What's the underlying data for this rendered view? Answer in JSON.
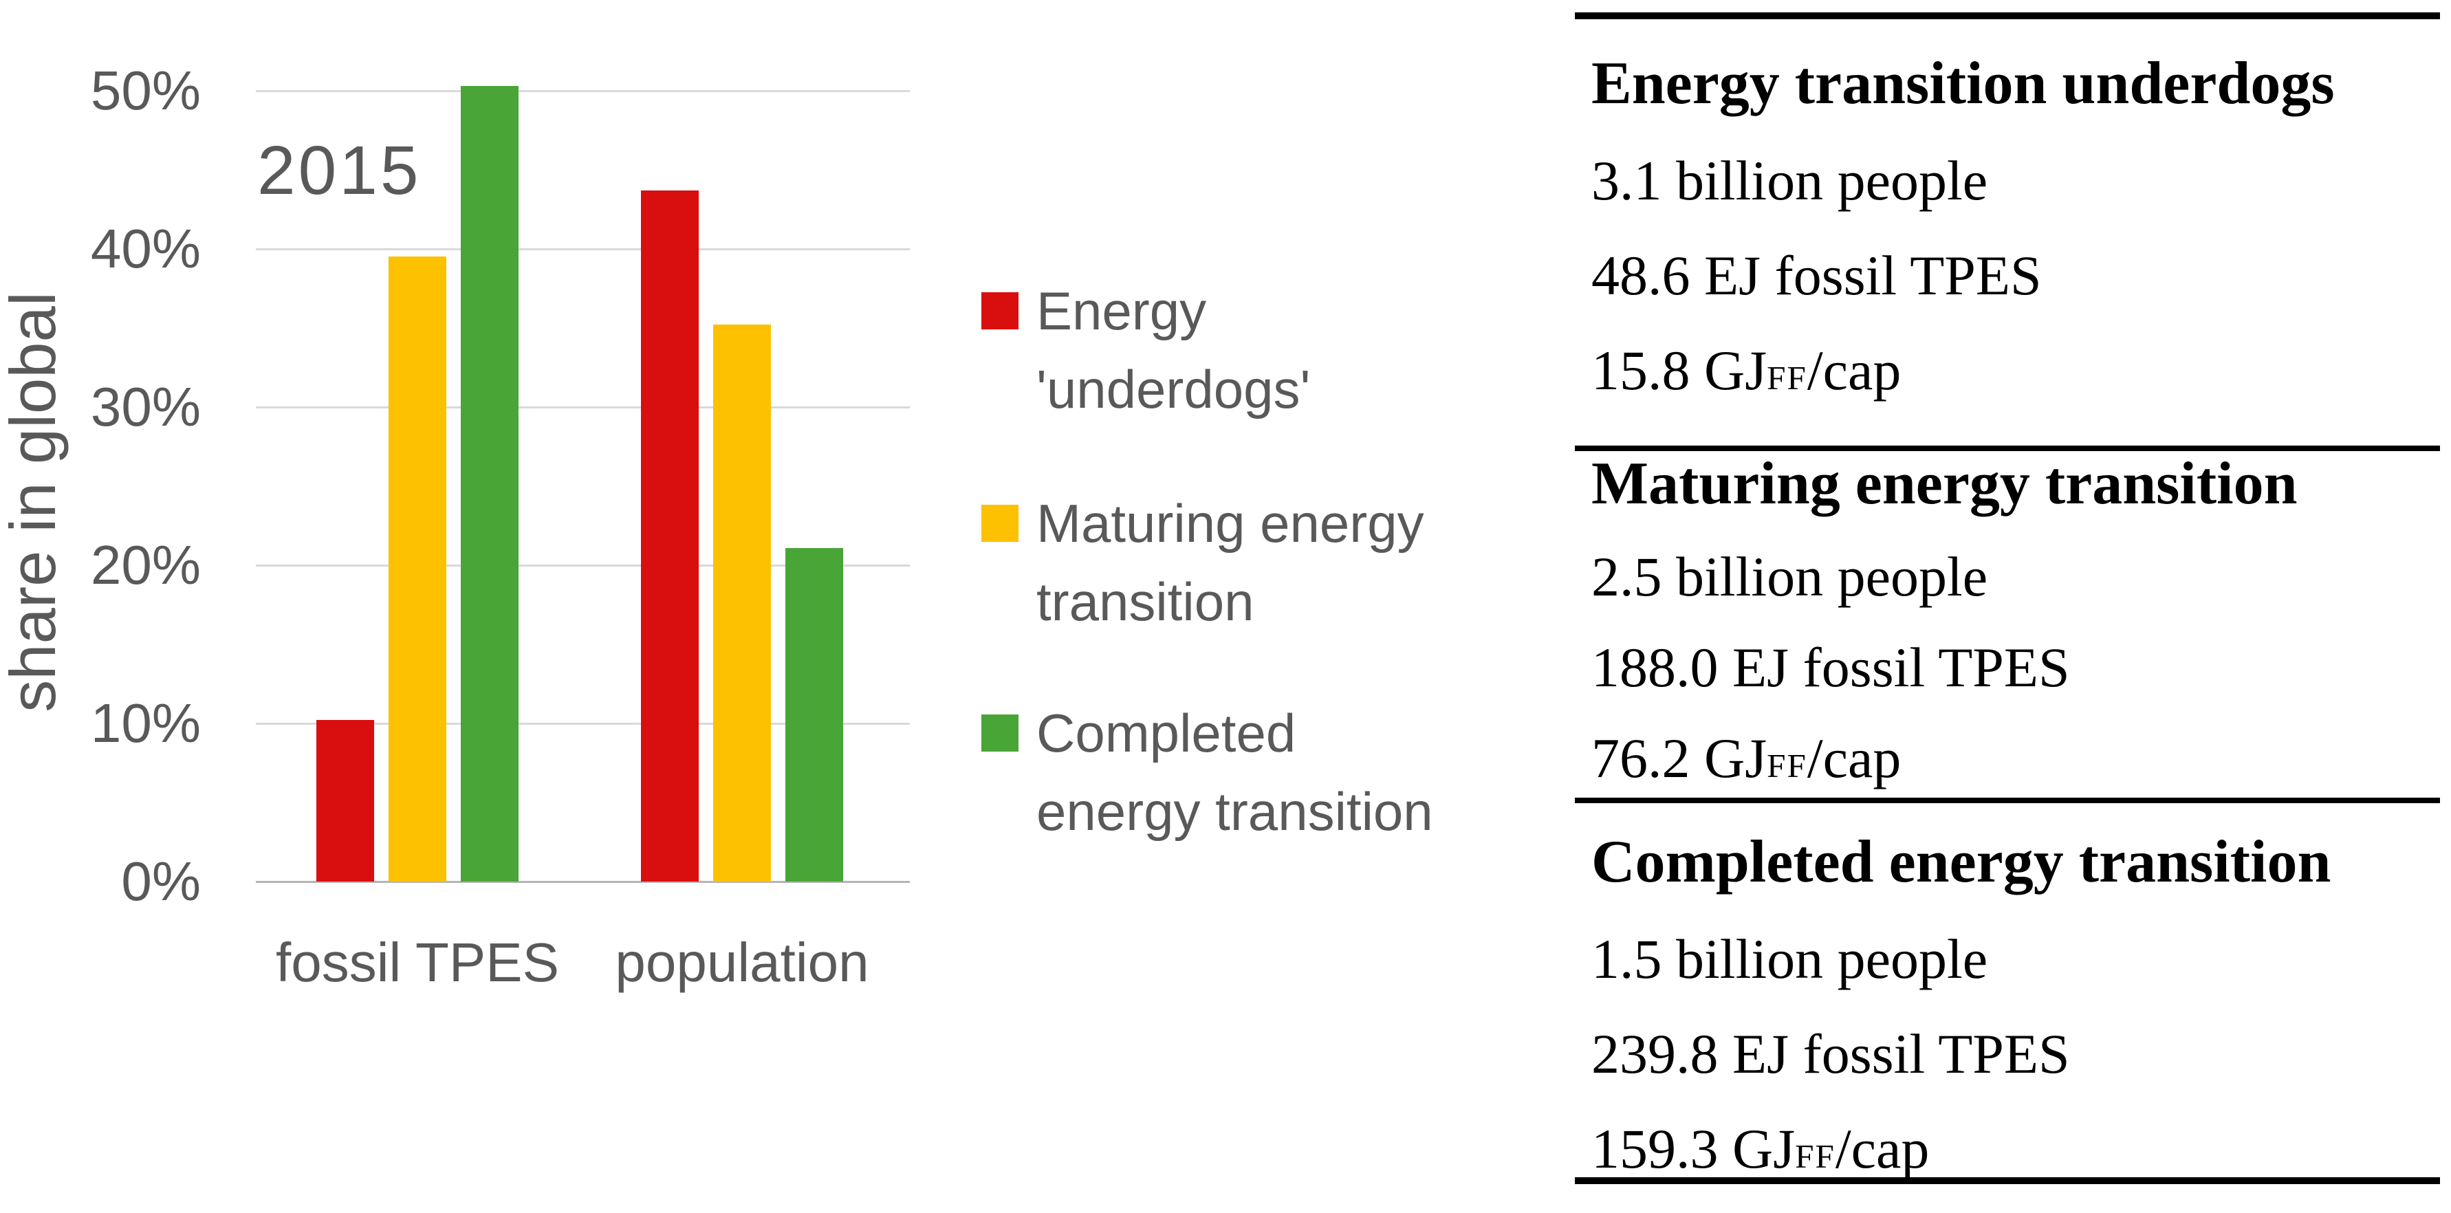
{
  "chart_data": {
    "type": "bar",
    "title": "2015",
    "ylabel": "share in global",
    "xlabel": "",
    "categories": [
      "fossil TPES",
      "population"
    ],
    "series": [
      {
        "name": "Energy 'underdogs'",
        "color": "#d90e0e",
        "values": [
          10.2,
          43.7
        ]
      },
      {
        "name": "Maturing energy transition",
        "color": "#fdc101",
        "values": [
          39.5,
          35.2
        ]
      },
      {
        "name": "Completed energy transition",
        "color": "#49a536",
        "values": [
          50.3,
          21.1
        ]
      }
    ],
    "unit_suffix": "%",
    "ylim": [
      0,
      52
    ],
    "yticks": [
      {
        "label": "0%",
        "value": 0
      },
      {
        "label": "10%",
        "value": 10
      },
      {
        "label": "20%",
        "value": 20
      },
      {
        "label": "30%",
        "value": 30
      },
      {
        "label": "40%",
        "value": 40
      },
      {
        "label": "50%",
        "value": 50
      }
    ],
    "grid": true,
    "legend_position": "right of plot"
  },
  "legend": {
    "items": [
      {
        "color": "#d90e0e",
        "lines": [
          "Energy",
          "'underdogs'"
        ]
      },
      {
        "color": "#fdc101",
        "lines": [
          "Maturing energy",
          "transition"
        ]
      },
      {
        "color": "#49a536",
        "lines": [
          "Completed",
          "energy transition"
        ]
      }
    ]
  },
  "panel": {
    "sections": [
      {
        "title": "Energy transition underdogs",
        "rows": [
          [
            {
              "text": "3.1 billion people"
            }
          ],
          [
            {
              "text": "48.6 EJ fossil TPES"
            }
          ],
          [
            {
              "text": "15.8 GJ"
            },
            {
              "text": "FF",
              "small": true
            },
            {
              "text": "/cap"
            }
          ]
        ]
      },
      {
        "title": "Maturing energy transition",
        "rows": [
          [
            {
              "text": "2.5 billion people"
            }
          ],
          [
            {
              "text": "188.0 EJ fossil TPES"
            }
          ],
          [
            {
              "text": "76.2 GJ"
            },
            {
              "text": "FF",
              "small": true
            },
            {
              "text": "/cap"
            }
          ]
        ]
      },
      {
        "title": "Completed energy transition",
        "rows": [
          [
            {
              "text": "1.5 billion people"
            }
          ],
          [
            {
              "text": "239.8 EJ fossil TPES"
            }
          ],
          [
            {
              "text": "159.3 GJ"
            },
            {
              "text": "FF",
              "small": true
            },
            {
              "text": "/cap"
            }
          ]
        ]
      }
    ]
  }
}
